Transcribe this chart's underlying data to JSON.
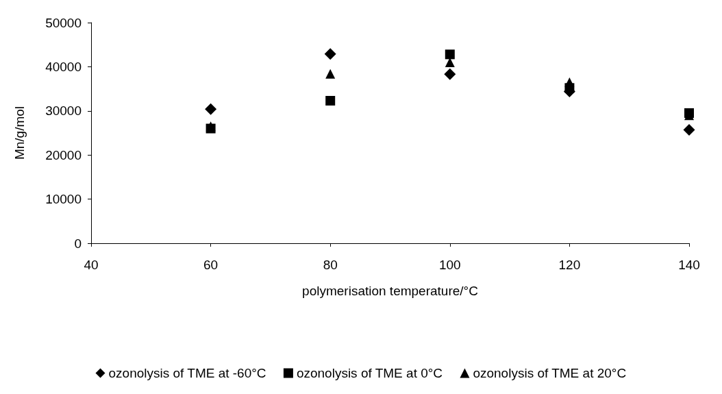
{
  "chart_data": {
    "type": "scatter",
    "xlabel": "polymerisation temperature/°C",
    "ylabel": "Mn/g/mol",
    "x": [
      60,
      80,
      100,
      120,
      140
    ],
    "xlim": [
      40,
      140
    ],
    "xticks": [
      40,
      60,
      80,
      100,
      120,
      140
    ],
    "ylim": [
      0,
      50000
    ],
    "yticks": [
      0,
      10000,
      20000,
      30000,
      40000,
      50000
    ],
    "grid": false,
    "legend": "bottom",
    "series": [
      {
        "name": "ozonolysis of TME at -60°C",
        "color": "#000000",
        "marker": "diamond",
        "values": [
          30400,
          42900,
          38300,
          34400,
          25700
        ]
      },
      {
        "name": "ozonolysis of TME at 0°C",
        "color": "#000000",
        "marker": "square",
        "values": [
          26000,
          32300,
          42800,
          35200,
          29500
        ]
      },
      {
        "name": "ozonolysis of TME at 20°C",
        "color": "#000000",
        "marker": "triangle",
        "values": [
          26500,
          38400,
          41000,
          36500,
          29000
        ]
      }
    ]
  }
}
